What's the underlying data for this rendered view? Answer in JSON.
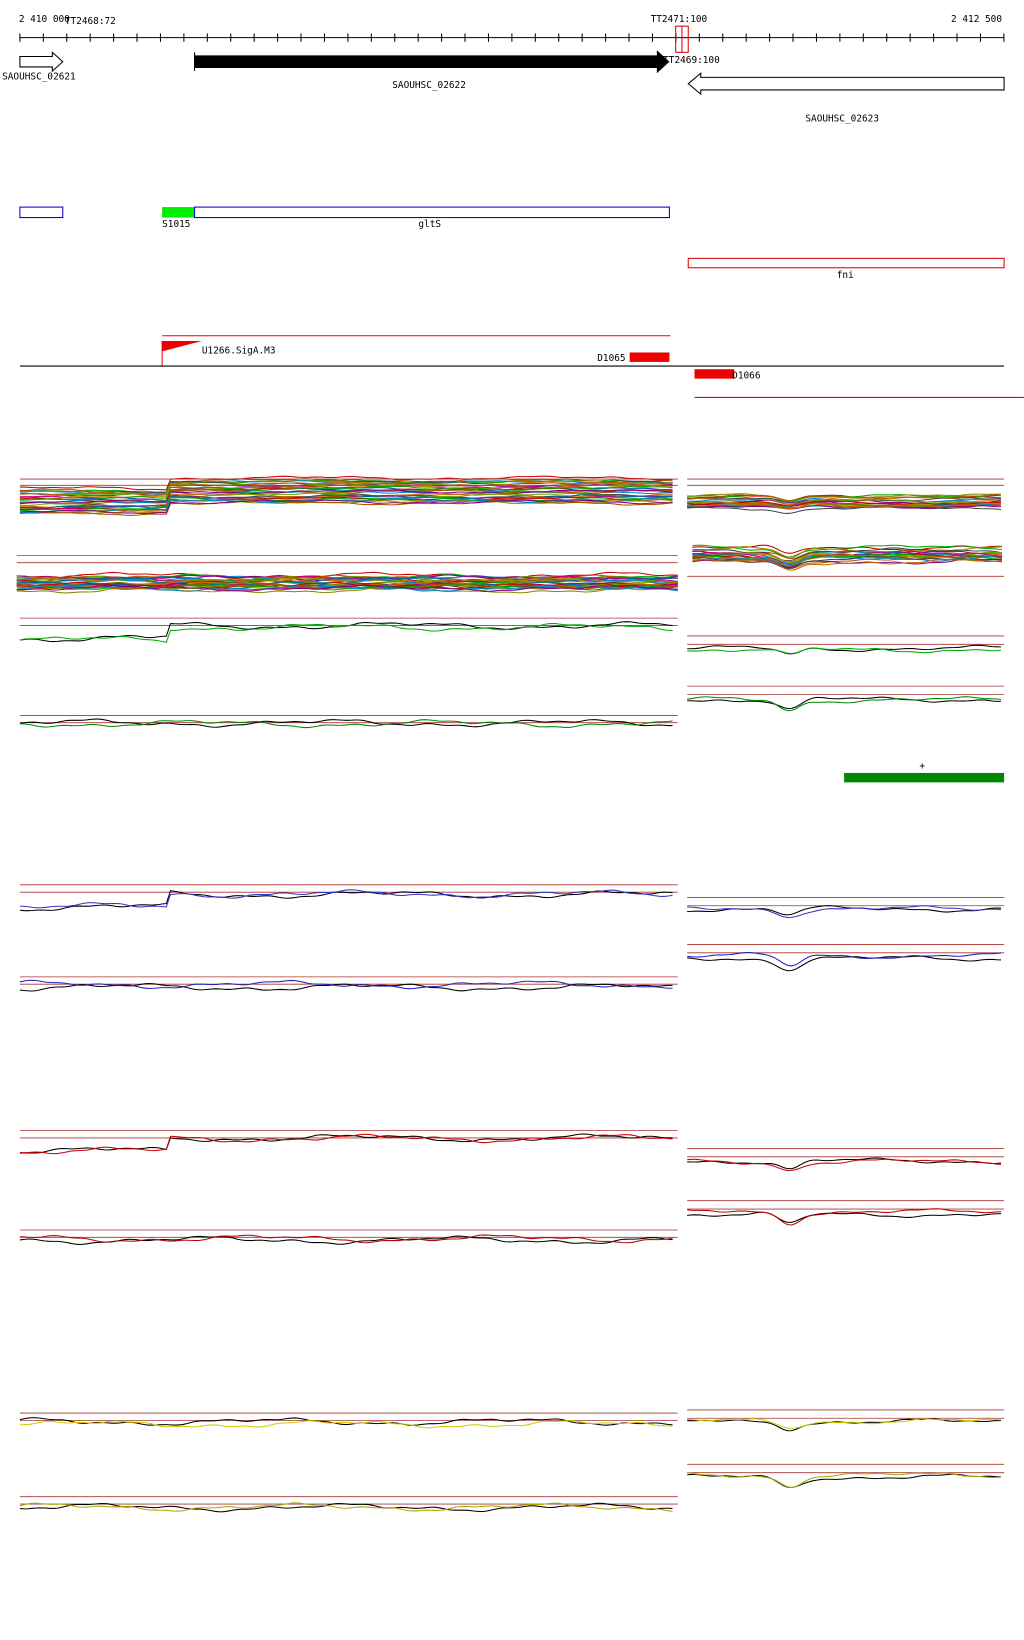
{
  "ruler": {
    "start_label": "2 410 000",
    "end_label": "2 412 500"
  },
  "markers": [
    "TT2468:72",
    "TT2471:100",
    "TT2469:100"
  ],
  "genes": [
    "SAOUHSC_02621",
    "SAOUHSC_02622",
    "SAOUHSC_02623"
  ],
  "features": [
    "S1015",
    "gltS",
    "fni",
    "U1266.SigA.M3",
    "D1065",
    "D1066"
  ],
  "strand_label": "+"
}
